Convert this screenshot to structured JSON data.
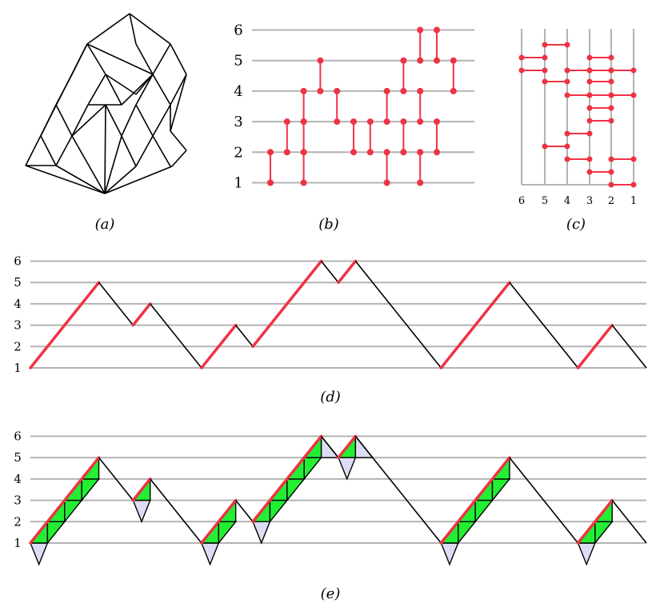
{
  "panels": {
    "a": {
      "caption": "(a)"
    },
    "b": {
      "caption": "(b)",
      "y_ticks": [
        "1",
        "2",
        "3",
        "4",
        "5",
        "6"
      ]
    },
    "c": {
      "caption": "(c)",
      "x_ticks": [
        "6",
        "5",
        "4",
        "3",
        "2",
        "1"
      ]
    },
    "d": {
      "caption": "(d)",
      "y_ticks": [
        "1",
        "2",
        "3",
        "4",
        "5",
        "6"
      ]
    },
    "e": {
      "caption": "(e)",
      "y_ticks": [
        "1",
        "2",
        "3",
        "4",
        "5",
        "6"
      ]
    }
  },
  "colors": {
    "red": "#ee3344",
    "grid": "#b3b3b3",
    "green": "#22ee33",
    "lavender": "#dcdcf4",
    "edge": "#000000"
  },
  "chart_data": {
    "type": "diagram",
    "path_heights": [
      1,
      5,
      3,
      4,
      1,
      3,
      2,
      6,
      5,
      6,
      1,
      5,
      1,
      3,
      1
    ],
    "b_dimers": [
      [
        1,
        1,
        2
      ],
      [
        3,
        1,
        2
      ],
      [
        2,
        2,
        3
      ],
      [
        3,
        2,
        3
      ],
      [
        3,
        3,
        4
      ],
      [
        4,
        4,
        5
      ],
      [
        5,
        3,
        4
      ],
      [
        6,
        2,
        3
      ],
      [
        7,
        2,
        3
      ],
      [
        8,
        1,
        2
      ],
      [
        8,
        3,
        4
      ],
      [
        9,
        2,
        3
      ],
      [
        9,
        4,
        5
      ],
      [
        10,
        1,
        2
      ],
      [
        10,
        3,
        4
      ],
      [
        10,
        5,
        6
      ],
      [
        11,
        2,
        3
      ],
      [
        11,
        5,
        6
      ],
      [
        12,
        4,
        5
      ]
    ]
  }
}
